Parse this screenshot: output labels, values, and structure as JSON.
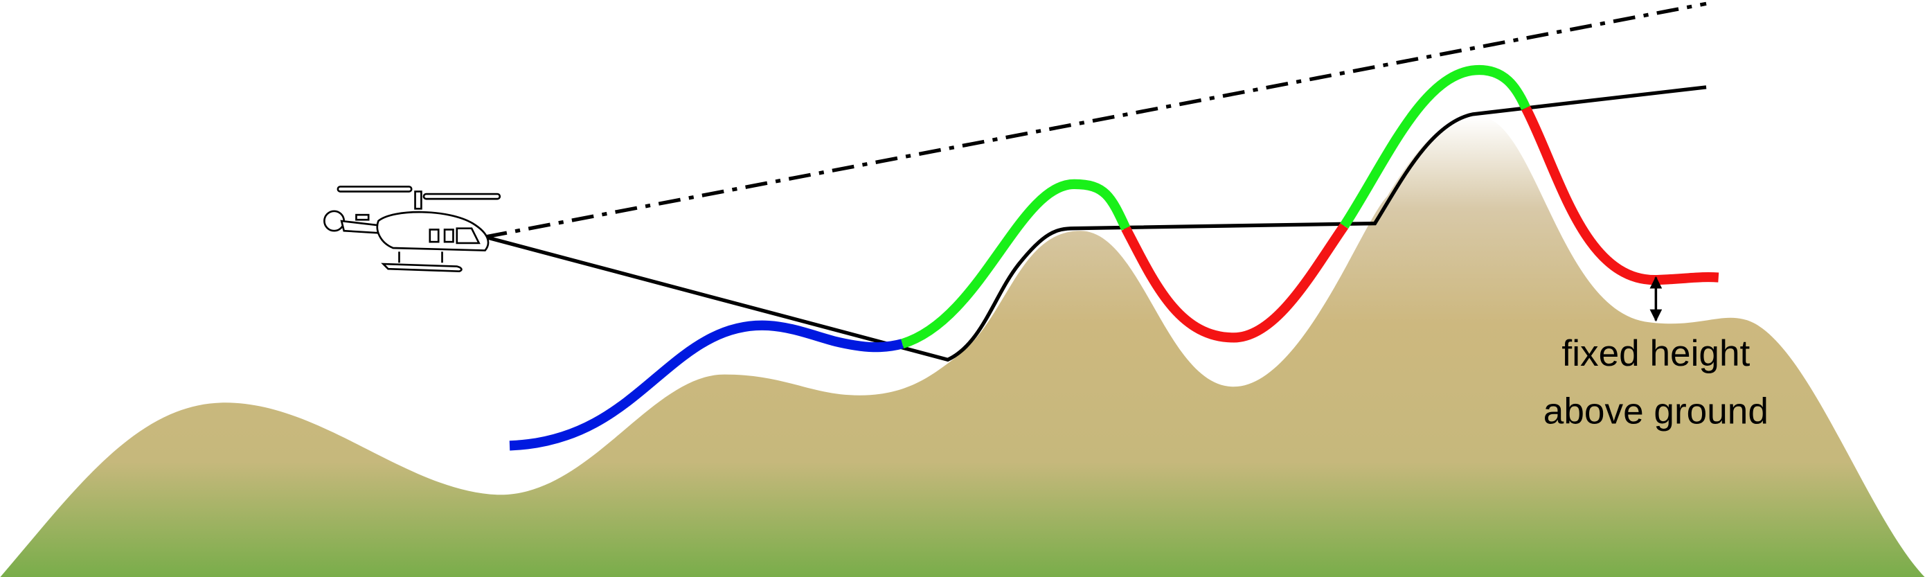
{
  "annotation": {
    "line1": "fixed height",
    "line2": "above ground"
  }
}
